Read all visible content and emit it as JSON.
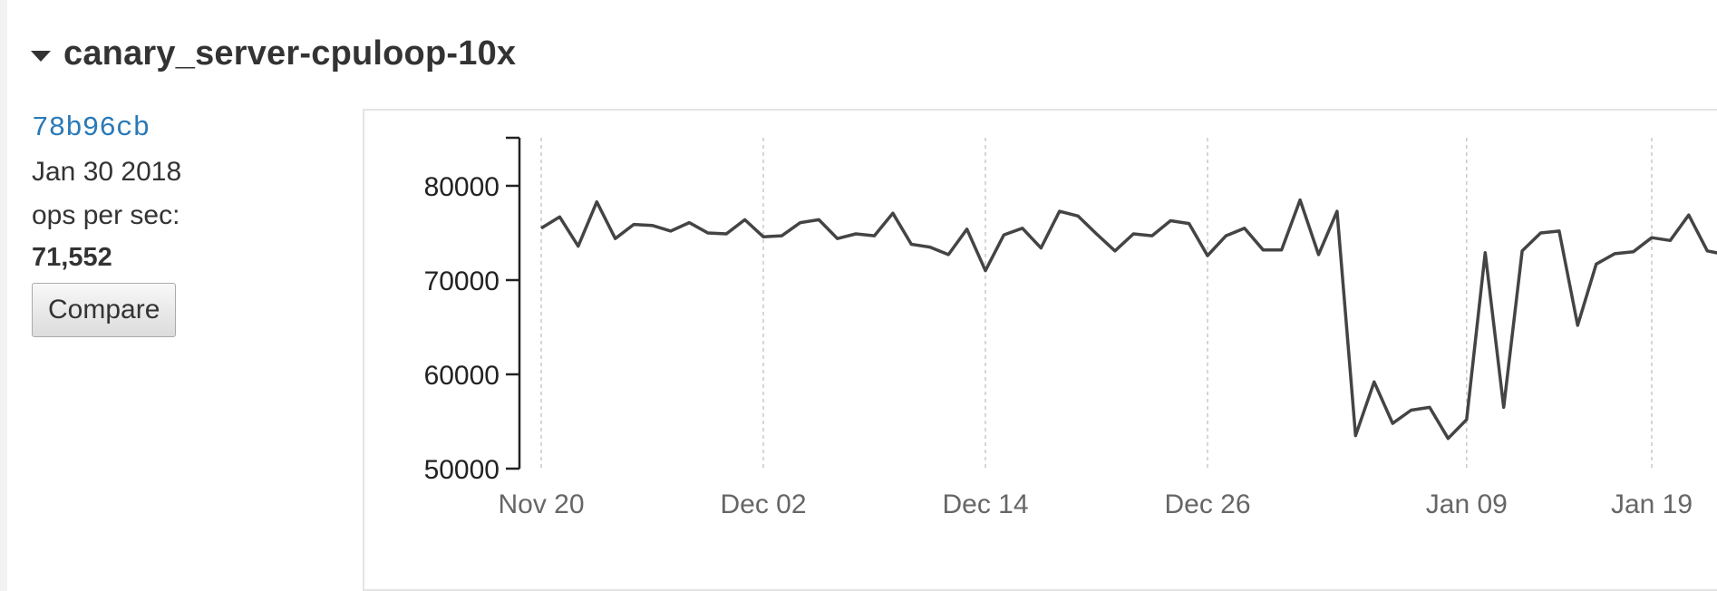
{
  "benchmark": {
    "title": "canary_server-cpuloop-10x",
    "commit": "78b96cb",
    "date": "Jan 30 2018",
    "metric_label": "ops per sec:",
    "metric_value": "71,552",
    "compare_label": "Compare"
  },
  "chart_data": {
    "type": "line",
    "title": "",
    "xlabel": "",
    "ylabel": "",
    "ylim": [
      50000,
      85000
    ],
    "y_ticks": [
      50000,
      60000,
      70000,
      80000
    ],
    "y_tick_labels": [
      "50000",
      "60000",
      "70000",
      "80000"
    ],
    "x_ticks": [
      "2017-11-20",
      "2017-12-02",
      "2017-12-14",
      "2017-12-26",
      "2018-01-09",
      "2018-01-19"
    ],
    "x_tick_labels": [
      "Nov 20",
      "Dec 02",
      "Dec 14",
      "Dec 26",
      "Jan 09",
      "Jan 19"
    ],
    "grid": "vertical dashed",
    "line_color": "#444444",
    "series": [
      {
        "points": [
          [
            "2017-11-20",
            75500
          ],
          [
            "2017-11-21",
            76700
          ],
          [
            "2017-11-22",
            73600
          ],
          [
            "2017-11-23",
            78300
          ],
          [
            "2017-11-24",
            74400
          ],
          [
            "2017-11-25",
            75900
          ],
          [
            "2017-11-26",
            75800
          ],
          [
            "2017-11-27",
            75200
          ],
          [
            "2017-11-28",
            76100
          ],
          [
            "2017-11-29",
            75000
          ],
          [
            "2017-11-30",
            74900
          ],
          [
            "2017-12-01",
            76400
          ],
          [
            "2017-12-02",
            74600
          ],
          [
            "2017-12-03",
            74700
          ],
          [
            "2017-12-04",
            76100
          ],
          [
            "2017-12-05",
            76400
          ],
          [
            "2017-12-06",
            74400
          ],
          [
            "2017-12-07",
            74900
          ],
          [
            "2017-12-08",
            74700
          ],
          [
            "2017-12-09",
            77100
          ],
          [
            "2017-12-10",
            73800
          ],
          [
            "2017-12-11",
            73500
          ],
          [
            "2017-12-12",
            72700
          ],
          [
            "2017-12-13",
            75400
          ],
          [
            "2017-12-14",
            71000
          ],
          [
            "2017-12-15",
            74800
          ],
          [
            "2017-12-16",
            75500
          ],
          [
            "2017-12-17",
            73400
          ],
          [
            "2017-12-18",
            77300
          ],
          [
            "2017-12-19",
            76800
          ],
          [
            "2017-12-20",
            74900
          ],
          [
            "2017-12-21",
            73100
          ],
          [
            "2017-12-22",
            74900
          ],
          [
            "2017-12-23",
            74700
          ],
          [
            "2017-12-24",
            76300
          ],
          [
            "2017-12-25",
            76000
          ],
          [
            "2017-12-26",
            72600
          ],
          [
            "2017-12-27",
            74700
          ],
          [
            "2017-12-28",
            75500
          ],
          [
            "2017-12-29",
            73200
          ],
          [
            "2017-12-30",
            73200
          ],
          [
            "2017-12-31",
            78500
          ],
          [
            "2018-01-01",
            72700
          ],
          [
            "2018-01-02",
            77300
          ],
          [
            "2018-01-03",
            53500
          ],
          [
            "2018-01-04",
            59200
          ],
          [
            "2018-01-05",
            54800
          ],
          [
            "2018-01-06",
            56200
          ],
          [
            "2018-01-07",
            56500
          ],
          [
            "2018-01-08",
            53200
          ],
          [
            "2018-01-09",
            55200
          ],
          [
            "2018-01-10",
            72900
          ],
          [
            "2018-01-11",
            56500
          ],
          [
            "2018-01-12",
            73100
          ],
          [
            "2018-01-13",
            75000
          ],
          [
            "2018-01-14",
            75200
          ],
          [
            "2018-01-15",
            65200
          ],
          [
            "2018-01-16",
            71700
          ],
          [
            "2018-01-17",
            72800
          ],
          [
            "2018-01-18",
            73000
          ],
          [
            "2018-01-19",
            74500
          ],
          [
            "2018-01-20",
            74200
          ],
          [
            "2018-01-21",
            76900
          ],
          [
            "2018-01-22",
            73100
          ],
          [
            "2018-01-23",
            72700
          ]
        ]
      }
    ]
  }
}
